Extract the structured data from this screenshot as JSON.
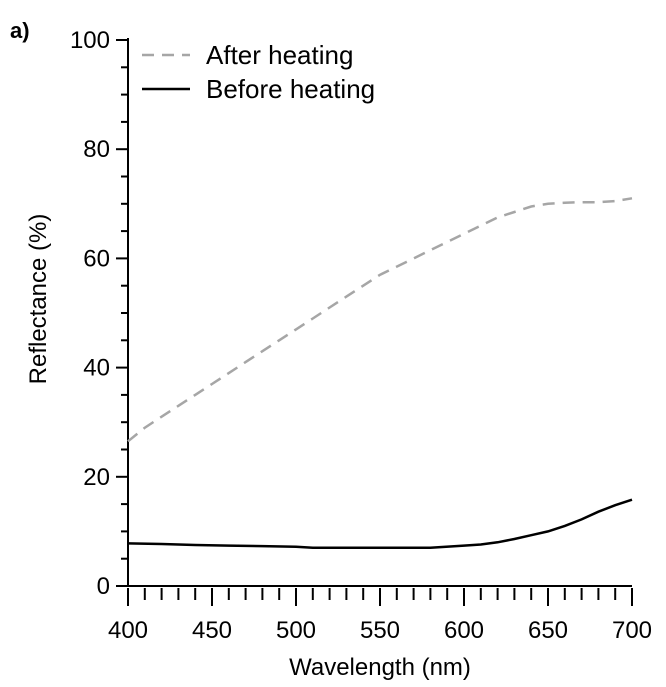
{
  "chart_data": {
    "type": "line",
    "panel_label": "a)",
    "title": "",
    "xlabel": "Wavelength (nm)",
    "ylabel": "Reflectance (%)",
    "xlim": [
      400,
      700
    ],
    "ylim": [
      0,
      100
    ],
    "x_ticks": [
      400,
      450,
      500,
      550,
      600,
      650,
      700
    ],
    "y_ticks": [
      0,
      20,
      40,
      60,
      80,
      100
    ],
    "x_minor_step": 10,
    "y_minor_step": 5,
    "grid": false,
    "legend_position": "top-left",
    "series": [
      {
        "name": "After heating",
        "style": "dashed",
        "color": "#a6a6a6",
        "x": [
          400,
          410,
          420,
          430,
          440,
          450,
          460,
          470,
          480,
          490,
          500,
          510,
          520,
          530,
          540,
          550,
          560,
          570,
          580,
          590,
          600,
          610,
          620,
          630,
          640,
          650,
          660,
          670,
          680,
          690,
          700
        ],
        "y": [
          26.5,
          29,
          31,
          33,
          35,
          37,
          39,
          41,
          43,
          45,
          47,
          49,
          51,
          53,
          55,
          57,
          58.5,
          60,
          61.5,
          63,
          64.5,
          66,
          67.5,
          68.5,
          69.5,
          70,
          70.2,
          70.3,
          70.3,
          70.5,
          71
        ]
      },
      {
        "name": "Before heating",
        "style": "solid",
        "color": "#000000",
        "x": [
          400,
          420,
          440,
          460,
          480,
          500,
          510,
          520,
          540,
          560,
          570,
          580,
          600,
          610,
          620,
          630,
          640,
          650,
          660,
          670,
          680,
          690,
          700
        ],
        "y": [
          7.8,
          7.7,
          7.5,
          7.4,
          7.3,
          7.2,
          7.0,
          7.0,
          7.0,
          7.0,
          7.0,
          7.0,
          7.4,
          7.6,
          8.0,
          8.6,
          9.3,
          10.0,
          11.0,
          12.2,
          13.6,
          14.8,
          15.8
        ]
      }
    ]
  }
}
